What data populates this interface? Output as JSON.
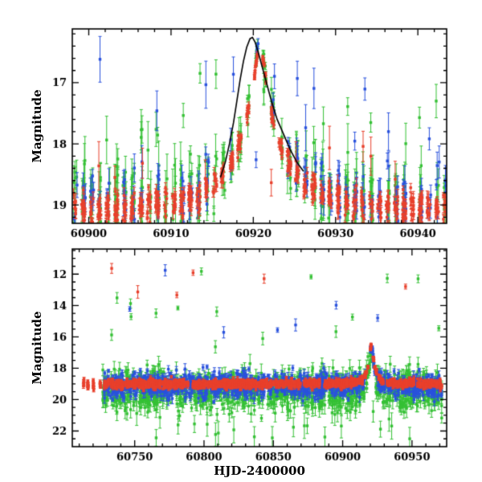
{
  "chart_data": {
    "type": "scatter",
    "panels": [
      {
        "id": "top",
        "ylabel": "Magnitude",
        "x_range": [
          60898,
          60943.5
        ],
        "y_range": [
          16.12,
          19.3
        ],
        "x_major_ticks": [
          60900,
          60910,
          60920,
          60930,
          60940
        ],
        "x_minor_step": 2,
        "y_major_ticks": [
          17,
          18,
          19
        ],
        "y_minor_step": 0.2,
        "show_x_tick_labels": true,
        "grid": false,
        "event": {
          "t0": 60920.8,
          "tE": 6.5,
          "u0": 0.085,
          "peak_mag": 16.3
        },
        "model_curve": [
          [
            60916.0,
            18.55
          ],
          [
            60916.6,
            18.3
          ],
          [
            60917.1,
            18.0
          ],
          [
            60917.6,
            17.65
          ],
          [
            60918.0,
            17.3
          ],
          [
            60918.4,
            16.95
          ],
          [
            60918.8,
            16.65
          ],
          [
            60919.2,
            16.42
          ],
          [
            60919.6,
            16.28
          ],
          [
            60919.9,
            16.26
          ],
          [
            60920.2,
            16.33
          ],
          [
            60920.6,
            16.5
          ],
          [
            60921.1,
            16.75
          ],
          [
            60921.6,
            17.0
          ],
          [
            60922.2,
            17.3
          ],
          [
            60922.9,
            17.6
          ],
          [
            60923.7,
            17.85
          ],
          [
            60924.5,
            18.1
          ],
          [
            60925.3,
            18.3
          ],
          [
            60926.1,
            18.45
          ]
        ],
        "series": [
          {
            "name": "green",
            "color": "#35c135",
            "t_start": 60898.15,
            "t_end": 60943.3,
            "night_step": 1.0,
            "night_span": 0.4,
            "night_skip_frac": 0.08,
            "pts_min": 5,
            "pts_max": 12,
            "baseline_mag": 19.0,
            "sigma": 0.3,
            "err_min": 0.12,
            "err_max": 0.5,
            "bright_outlier_frac": 0.1,
            "bright_outlier_range": [
              16.8,
              18.6
            ],
            "event": true
          },
          {
            "name": "blue",
            "color": "#2a52dd",
            "t_start": 60898.2,
            "t_end": 60943.3,
            "night_step": 1.0,
            "night_span": 0.4,
            "night_skip_frac": 0.35,
            "pts_min": 3,
            "pts_max": 8,
            "baseline_mag": 18.95,
            "sigma": 0.24,
            "err_min": 0.07,
            "err_max": 0.28,
            "bright_outlier_frac": 0.05,
            "bright_outlier_range": [
              16.5,
              18.3
            ],
            "event": true
          },
          {
            "name": "red",
            "color": "#e8402c",
            "t_start": 60898.1,
            "t_end": 60943.3,
            "night_step": 1.0,
            "night_span": 0.45,
            "night_skip_frac": 0.04,
            "pts_min": 8,
            "pts_max": 16,
            "baseline_mag": 19.08,
            "sigma": 0.14,
            "err_min": 0.04,
            "err_max": 0.13,
            "bright_outlier_frac": 0.015,
            "bright_outlier_range": [
              18.0,
              18.7
            ],
            "event": true
          }
        ]
      },
      {
        "id": "bottom",
        "ylabel": "Magnitude",
        "xlabel": "HJD-2400000",
        "x_range": [
          60705,
          60975
        ],
        "y_range": [
          10.4,
          23.0
        ],
        "x_major_ticks": [
          60750,
          60800,
          60850,
          60900,
          60950
        ],
        "x_minor_step": 10,
        "y_major_ticks": [
          12,
          14,
          16,
          18,
          20,
          22
        ],
        "y_minor_step": 0.5,
        "show_x_tick_labels": true,
        "grid": false,
        "event": {
          "t0": 60920.8,
          "tE": 6.5,
          "u0": 0.085,
          "peak_mag": 16.4
        },
        "series": [
          {
            "name": "green",
            "color": "#35c135",
            "t_start": 60727,
            "t_end": 60971,
            "night_step": 1.0,
            "night_span": 0.5,
            "night_skip_frac": 0.15,
            "pts_min": 3,
            "pts_max": 8,
            "baseline_mag": 19.4,
            "sigma": 0.62,
            "err_min": 0.2,
            "err_max": 0.6,
            "bright_outlier_frac": 0.02,
            "bright_outlier_range": [
              11.8,
              17.0
            ],
            "faint_outlier_frac": 0.03,
            "faint_outlier_range": [
              20.6,
              22.5
            ],
            "event": true
          },
          {
            "name": "blue",
            "color": "#2a52dd",
            "t_start": 60727,
            "t_end": 60971,
            "night_step": 1.0,
            "night_span": 0.5,
            "night_skip_frac": 0.2,
            "pts_min": 3,
            "pts_max": 8,
            "baseline_mag": 19.1,
            "sigma": 0.38,
            "err_min": 0.1,
            "err_max": 0.35,
            "bright_outlier_frac": 0.012,
            "bright_outlier_range": [
              11.5,
              16.5
            ],
            "event": true
          },
          {
            "name": "red",
            "color": "#e8402c",
            "t_start": 60708,
            "t_end": 60971,
            "night_step": 1.0,
            "night_span": 0.5,
            "night_skip_frac": 0.12,
            "sparse_until": 60726,
            "sparse_skip": 0.55,
            "pts_min": 4,
            "pts_max": 9,
            "baseline_mag": 19.0,
            "sigma": 0.13,
            "err_min": 0.05,
            "err_max": 0.15,
            "bright_outlier_frac": 0.003,
            "bright_outlier_range": [
              11.5,
              14.5
            ],
            "event": true
          }
        ]
      }
    ]
  }
}
